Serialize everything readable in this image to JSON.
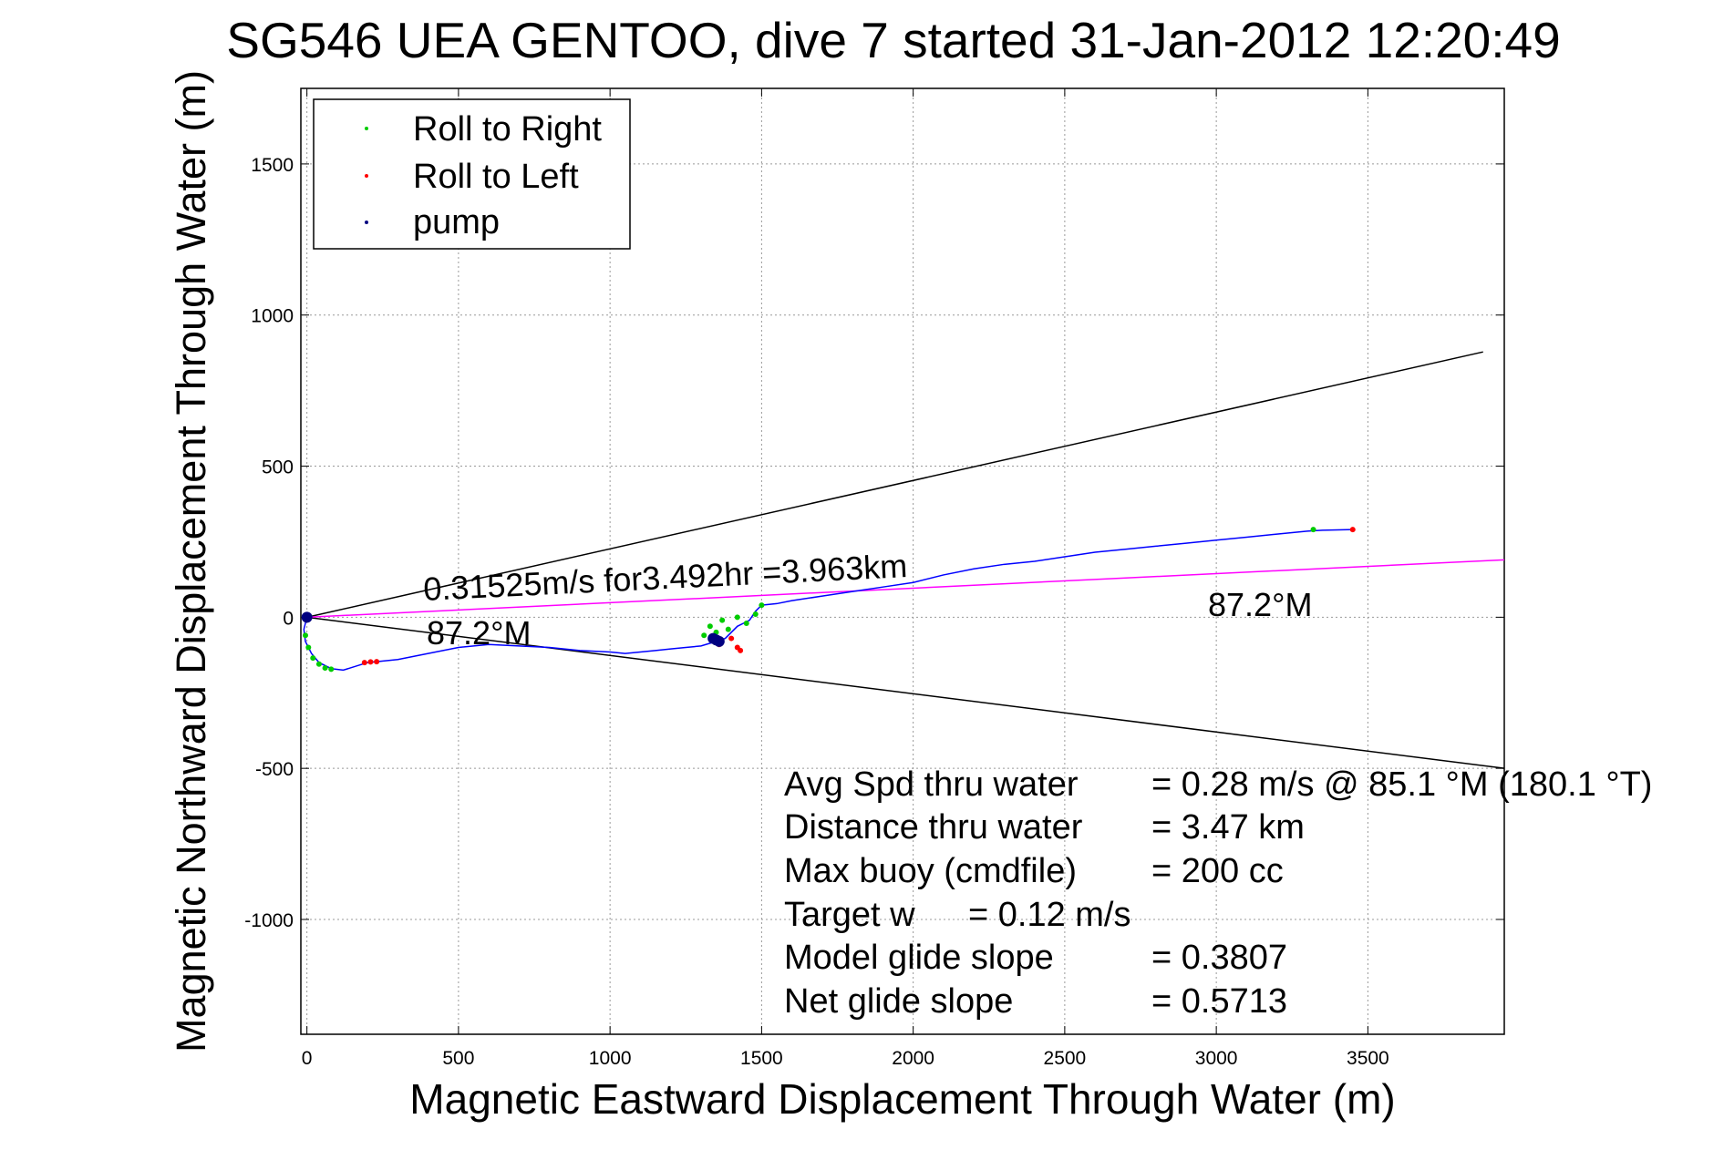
{
  "chart_data": {
    "type": "line",
    "title": "SG546 UEA GENTOO, dive 7 started 31-Jan-2012 12:20:49",
    "xlabel": "Magnetic Eastward Displacement Through Water (m)",
    "ylabel": "Magnetic Northward Displacement Through Water (m)",
    "xlim": [
      -20,
      3950
    ],
    "ylim": [
      -1380,
      1750
    ],
    "xticks": [
      0,
      500,
      1000,
      1500,
      2000,
      2500,
      3000,
      3500
    ],
    "yticks": [
      -1000,
      -500,
      0,
      500,
      1000,
      1500
    ],
    "xtick_labels": [
      "0",
      "500",
      "1000",
      "1500",
      "2000",
      "2500",
      "3000",
      "3500"
    ],
    "ytick_labels": [
      "-1000",
      "-500",
      "0",
      "500",
      "1000",
      "1500"
    ],
    "grid": true,
    "legend_position": "top-left",
    "legend": [
      {
        "label": "Roll to Right",
        "color": "#00cc00",
        "marker": "point"
      },
      {
        "label": "Roll to Left",
        "color": "#ff0000",
        "marker": "point"
      },
      {
        "label": "pump",
        "color": "#000080",
        "marker": "point"
      }
    ],
    "series": [
      {
        "color": "#0000ff",
        "x": [
          0,
          -10,
          -5,
          15,
          40,
          80,
          120,
          200,
          300,
          400,
          500,
          600,
          700,
          800,
          900,
          1000,
          1050,
          1100,
          1150,
          1200,
          1250,
          1300,
          1350,
          1380,
          1400,
          1420,
          1440,
          1460,
          1480,
          1500,
          1550,
          1600,
          1700,
          1800,
          1900,
          2000,
          2100,
          2200,
          2300,
          2400,
          2500,
          2600,
          2700,
          2800,
          2900,
          3000,
          3100,
          3200,
          3300,
          3350,
          3450
        ],
        "y": [
          0,
          -40,
          -80,
          -120,
          -150,
          -170,
          -175,
          -150,
          -140,
          -120,
          -100,
          -90,
          -95,
          -100,
          -110,
          -115,
          -120,
          -115,
          -110,
          -105,
          -100,
          -95,
          -80,
          -70,
          -50,
          -30,
          -20,
          -10,
          20,
          40,
          45,
          55,
          70,
          85,
          100,
          115,
          140,
          160,
          175,
          185,
          200,
          215,
          225,
          235,
          245,
          255,
          265,
          275,
          285,
          288,
          290
        ]
      }
    ],
    "roll_right_points": {
      "x": [
        -5,
        5,
        20,
        40,
        60,
        80,
        1310,
        1330,
        1350,
        1370,
        1390,
        1420,
        1450,
        1480,
        1500,
        3320
      ],
      "y": [
        -60,
        -100,
        -135,
        -155,
        -168,
        -172,
        -60,
        -30,
        -50,
        -10,
        -40,
        0,
        -20,
        10,
        40,
        290
      ]
    },
    "roll_left_points": {
      "x": [
        190,
        210,
        230,
        1360,
        1400,
        1420,
        1430,
        3450
      ],
      "y": [
        -150,
        -148,
        -147,
        -90,
        -70,
        -100,
        -110,
        290
      ]
    },
    "pump_points": {
      "x": [
        0,
        1350,
        1360,
        1340
      ],
      "y": [
        0,
        -75,
        -80,
        -70
      ]
    },
    "reference_lines": [
      {
        "color": "#000000",
        "x": [
          0,
          3880
        ],
        "y": [
          0,
          878
        ]
      },
      {
        "color": "#000000",
        "x": [
          0,
          3950
        ],
        "y": [
          0,
          -500
        ]
      },
      {
        "color": "#ff00ff",
        "x": [
          0,
          3950
        ],
        "y": [
          0,
          190
        ]
      }
    ],
    "annotations": {
      "speed": "0.31525m/s for3.492hr =3.963km",
      "heading_near": "87.2°M",
      "heading_far": "87.2°M"
    },
    "stats": {
      "line1_label": "Avg Spd thru water",
      "line1_value": "=  0.28 m/s @  85.1 °M (180.1 °T)",
      "line2_label": "Distance thru water",
      "line2_value": "=  3.47 km",
      "line3_label": "Max buoy (cmdfile)",
      "line3_value": "= 200 cc",
      "line4_label": "Target w",
      "line4_value": "= 0.12 m/s",
      "line5_label": "Model glide slope",
      "line5_value": "= 0.3807",
      "line6_label": "Net glide slope",
      "line6_value": "= 0.5713"
    }
  }
}
